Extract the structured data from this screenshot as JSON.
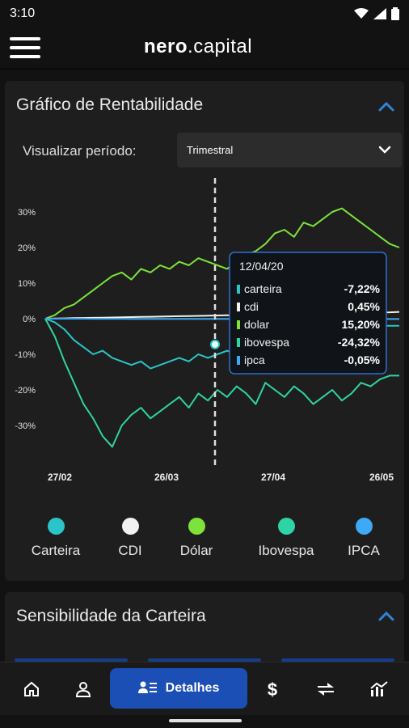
{
  "status_bar": {
    "time": "3:10"
  },
  "app": {
    "logo_bold": "nero",
    "logo_light": "capital"
  },
  "chart_card": {
    "title": "Gráfico de Rentabilidade",
    "period_label": "Visualizar período:",
    "period_value": "Trimestral"
  },
  "chart_data": {
    "type": "line",
    "x_ticks": [
      "27/02",
      "26/03",
      "27/04",
      "26/05"
    ],
    "y_ticks": [
      "30%",
      "20%",
      "10%",
      "0%",
      "-10%",
      "-20%",
      "-30%"
    ],
    "ylim": [
      -40,
      35
    ],
    "grid": false,
    "series": [
      {
        "name": "Carteira",
        "color": "#2bc4c9",
        "values": [
          0,
          -1,
          -3,
          -6,
          -8,
          -10,
          -9,
          -11,
          -12,
          -13,
          -12,
          -14,
          -13,
          -12,
          -11,
          -12,
          -10,
          -11,
          -10,
          -9,
          -10,
          -9,
          -8,
          -9,
          -7,
          -7,
          -7,
          -6,
          -6,
          -5,
          -5,
          -4,
          -4,
          -3,
          -3,
          -2,
          -2,
          -2
        ]
      },
      {
        "name": "CDI",
        "color": "#f2f2f2",
        "values": [
          0,
          0.05,
          0.1,
          0.15,
          0.2,
          0.25,
          0.3,
          0.35,
          0.4,
          0.45,
          0.5,
          0.55,
          0.6,
          0.65,
          0.7,
          0.75,
          0.8,
          0.85,
          0.9,
          0.95,
          1.0,
          1.05,
          1.1,
          1.15,
          1.2,
          1.25,
          1.3,
          1.35,
          1.4,
          1.45,
          1.5,
          1.55,
          1.6,
          1.65,
          1.7,
          1.75,
          1.8,
          1.9
        ]
      },
      {
        "name": "Dólar",
        "color": "#7de33a",
        "values": [
          0,
          1,
          3,
          4,
          6,
          8,
          10,
          12,
          13,
          11,
          14,
          13,
          15,
          14,
          16,
          15,
          17,
          16,
          15,
          14,
          16,
          18,
          19,
          21,
          24,
          25,
          23,
          27,
          26,
          28,
          30,
          31,
          29,
          27,
          25,
          23,
          21,
          20
        ]
      },
      {
        "name": "Ibovespa",
        "color": "#2fd4a4",
        "values": [
          0,
          -5,
          -12,
          -18,
          -24,
          -28,
          -33,
          -36,
          -30,
          -27,
          -25,
          -28,
          -26,
          -24,
          -22,
          -25,
          -21,
          -23,
          -20,
          -22,
          -19,
          -21,
          -24,
          -18,
          -20,
          -22,
          -19,
          -21,
          -24,
          -22,
          -20,
          -23,
          -21,
          -18,
          -19,
          -17,
          -16,
          -16
        ]
      },
      {
        "name": "IPCA",
        "color": "#3ea9f5",
        "values": [
          0,
          0,
          0,
          0,
          0,
          -0.02,
          -0.02,
          -0.03,
          -0.03,
          -0.04,
          -0.04,
          -0.05,
          -0.05,
          -0.05,
          -0.05,
          -0.05,
          -0.05,
          -0.05,
          -0.06,
          -0.06,
          -0.06,
          -0.06,
          -0.07,
          -0.07,
          -0.07,
          -0.07,
          -0.08,
          -0.08,
          -0.08,
          -0.08,
          -0.08,
          -0.09,
          -0.09,
          -0.09,
          -0.1,
          -0.1,
          -0.1,
          -0.1
        ]
      }
    ],
    "tooltip": {
      "date": "12/04/20",
      "rows": [
        {
          "label": "carteira",
          "value": "-7,22%",
          "color": "#2bc4c9"
        },
        {
          "label": "cdi",
          "value": "0,45%",
          "color": "#f2f2f2"
        },
        {
          "label": "dolar",
          "value": "15,20%",
          "color": "#7de33a"
        },
        {
          "label": "ibovespa",
          "value": "-24,32%",
          "color": "#2fd4a4"
        },
        {
          "label": "ipca",
          "value": "-0,05%",
          "color": "#3ea9f5"
        }
      ]
    }
  },
  "legend": [
    {
      "label": "Carteira",
      "color": "#2bc4c9"
    },
    {
      "label": "CDI",
      "color": "#f2f2f2"
    },
    {
      "label": "Dólar",
      "color": "#7de33a"
    },
    {
      "label": "Ibovespa",
      "color": "#2fd4a4"
    },
    {
      "label": "IPCA",
      "color": "#3ea9f5"
    }
  ],
  "sensitivity_card": {
    "title": "Sensibilidade da Carteira"
  },
  "bottom_nav": {
    "active_label": "Detalhes",
    "icons": [
      "home-icon",
      "person-icon",
      "details-icon",
      "dollar-icon",
      "transfer-icon",
      "chart-icon"
    ]
  },
  "colors": {
    "accent": "#1b4fb5",
    "chevron": "#2d84d8"
  }
}
